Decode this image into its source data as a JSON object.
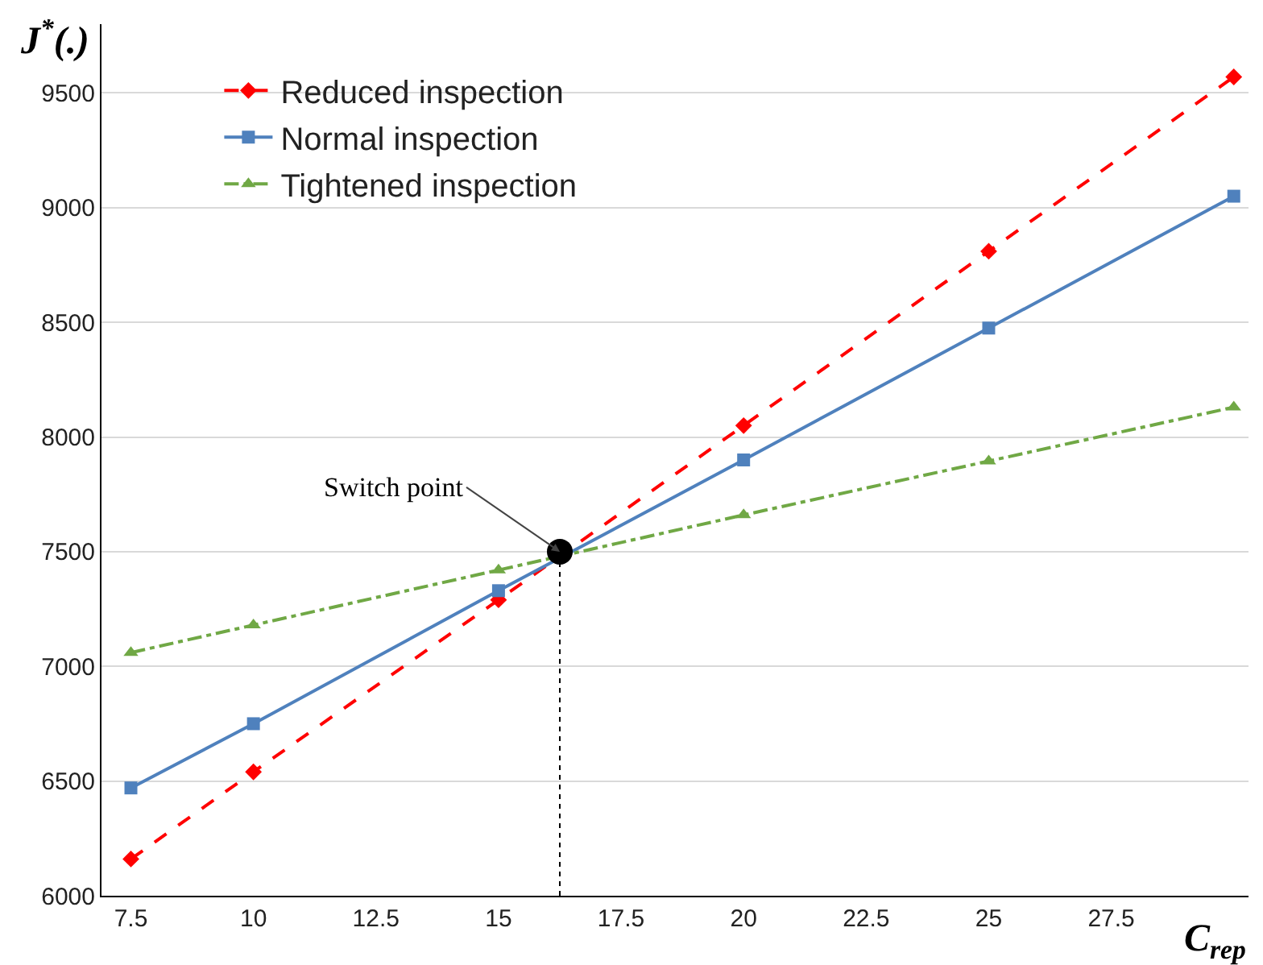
{
  "chart_data": {
    "type": "line",
    "xlabel": "C$_{rep}$",
    "ylabel": "J$^{*}$(.)",
    "x": [
      7.5,
      10,
      15,
      20,
      25,
      30
    ],
    "series": [
      {
        "name": "Reduced inspection",
        "color": "#ff0000",
        "marker": "diamond",
        "line_style": "dashed",
        "values": [
          6160,
          6540,
          7290,
          8050,
          8810,
          9570
        ]
      },
      {
        "name": "Normal inspection",
        "color": "#4f81bd",
        "marker": "square",
        "line_style": "solid",
        "values": [
          6470,
          6750,
          7330,
          7900,
          8475,
          9050
        ]
      },
      {
        "name": "Tightened inspection",
        "color": "#70a845",
        "marker": "triangle",
        "line_style": "dashdot",
        "values": [
          7060,
          7180,
          7420,
          7660,
          7895,
          8130
        ]
      },
      {
        "type": "scatter",
        "x": [
          16.25
        ],
        "color": "#000000",
        "marker": "circle",
        "values": [
          7500
        ]
      }
    ],
    "annotations": [
      {
        "text": "Switch point",
        "x": 16.25,
        "y": 7500
      }
    ],
    "ref_lines": [
      {
        "axis": "x",
        "value": 16.25,
        "color": "#000000",
        "line_style": "dotted"
      }
    ],
    "xlim": [
      6.9,
      30.3
    ],
    "xticks": [
      7.5,
      10,
      12.5,
      15,
      17.5,
      20,
      22.5,
      25,
      27.5
    ],
    "ylim": [
      6000,
      9800
    ],
    "yticks": [
      6000,
      6500,
      7000,
      7500,
      8000,
      8500,
      9000,
      9500
    ],
    "grid": "y",
    "legend": "top left"
  }
}
